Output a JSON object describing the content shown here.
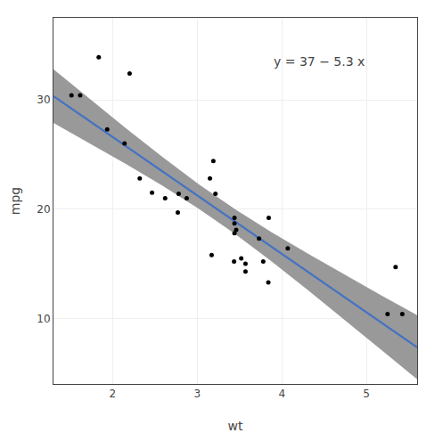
{
  "chart_data": {
    "type": "scatter",
    "xlabel": "wt",
    "ylabel": "mpg",
    "x": [
      2.62,
      2.875,
      2.32,
      3.215,
      3.44,
      3.46,
      3.57,
      3.19,
      3.15,
      3.44,
      3.44,
      4.07,
      3.73,
      3.78,
      5.25,
      5.424,
      5.345,
      2.2,
      1.615,
      1.835,
      2.465,
      3.52,
      3.435,
      3.84,
      3.845,
      1.935,
      2.14,
      1.513,
      3.17,
      2.77,
      3.57,
      2.78
    ],
    "values": [
      21.0,
      21.0,
      22.8,
      21.4,
      18.7,
      18.1,
      14.3,
      24.4,
      22.8,
      19.2,
      17.8,
      16.4,
      17.3,
      15.2,
      10.4,
      10.4,
      14.7,
      32.4,
      30.4,
      33.9,
      21.5,
      15.5,
      15.2,
      13.3,
      19.2,
      27.3,
      26.0,
      30.4,
      15.8,
      19.7,
      15.0,
      21.4
    ],
    "color": "black",
    "fit": {
      "x": [
        1.3,
        5.6
      ],
      "values": [
        30.33715,
        7.3558
      ],
      "color": "#4472C4"
    },
    "band": {
      "x": [
        1.3,
        1.73,
        2.16,
        2.59,
        3.02,
        3.45,
        3.88,
        4.31,
        4.74,
        5.17,
        5.6
      ],
      "lower": [
        27.8873,
        26.0159,
        24.1079,
        22.1304,
        20.0221,
        17.7152,
        15.2135,
        12.5871,
        9.8948,
        7.1678,
        4.4213
      ],
      "upper": [
        32.787,
        30.0622,
        27.3739,
        24.7551,
        22.2671,
        19.9778,
        17.8832,
        15.9134,
        14.0094,
        12.1401,
        10.2903
      ],
      "color": "#999999"
    },
    "annotations": [
      {
        "text": "y = 37 − 5.3 x"
      }
    ],
    "xlim": [
      1.3,
      5.6
    ],
    "ylim": [
      4.0,
      37.5
    ],
    "xticks": [
      2,
      3,
      4,
      5
    ],
    "yticks": [
      10,
      20,
      30
    ],
    "grid": true
  }
}
